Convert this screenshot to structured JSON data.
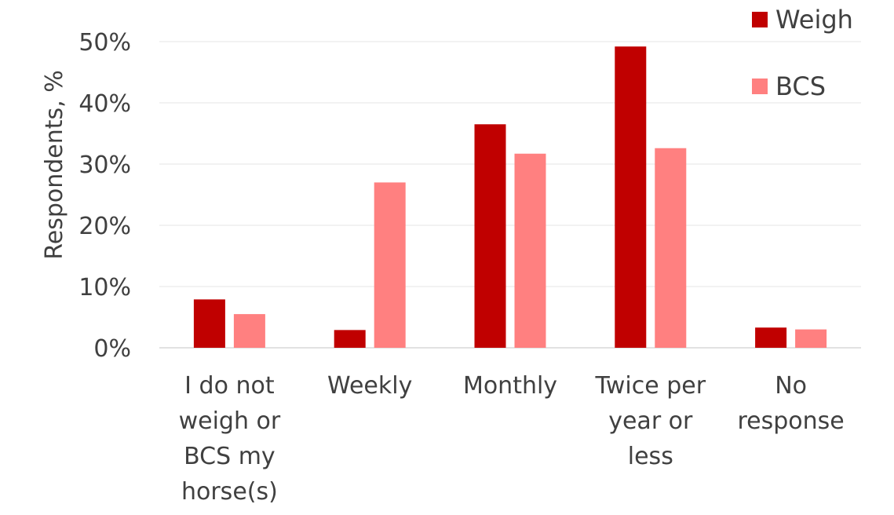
{
  "chart_data": {
    "type": "bar",
    "title": "",
    "xlabel": "",
    "ylabel": "Respondents, %",
    "ylim": [
      0,
      50
    ],
    "yticks": [
      "0%",
      "10%",
      "20%",
      "30%",
      "40%",
      "50%"
    ],
    "grid": true,
    "legend_position": "top-right",
    "categories": [
      [
        "I do not",
        "weigh or",
        "BCS my",
        "horse(s)"
      ],
      [
        "Weekly"
      ],
      [
        "Monthly"
      ],
      [
        "Twice per",
        "year or",
        "less"
      ],
      [
        "No",
        "response"
      ]
    ],
    "series": [
      {
        "name": "Weigh",
        "color": "#c00000",
        "values": [
          7.9,
          2.9,
          36.5,
          49.2,
          3.3
        ]
      },
      {
        "name": "BCS",
        "color": "#ff8080",
        "values": [
          5.5,
          27.0,
          31.7,
          32.6,
          3.0
        ]
      }
    ]
  }
}
